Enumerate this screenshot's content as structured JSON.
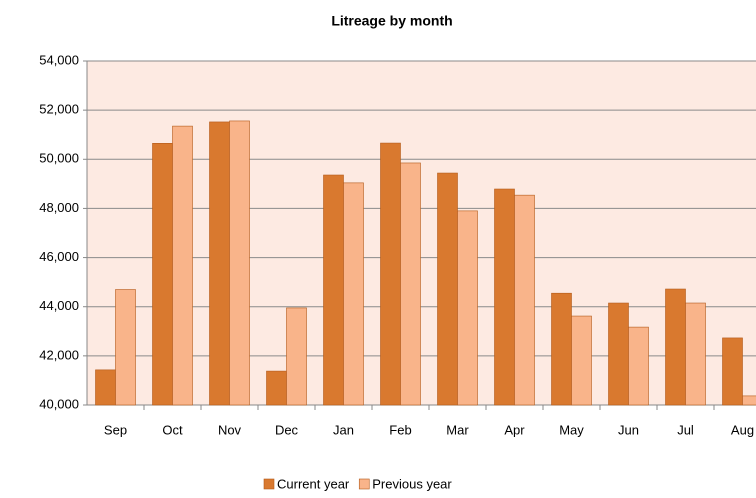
{
  "chart_data": {
    "type": "bar",
    "title": "Litreage by month",
    "categories": [
      "Sep",
      "Oct",
      "Nov",
      "Dec",
      "Jan",
      "Feb",
      "Mar",
      "Apr",
      "May",
      "Jun",
      "Jul",
      "Aug"
    ],
    "series": [
      {
        "name": "Current year",
        "color": "#d9792f",
        "values": [
          41430,
          50650,
          51520,
          41380,
          49360,
          50660,
          49440,
          48790,
          44550,
          44150,
          44720,
          42730
        ]
      },
      {
        "name": "Previous year",
        "color": "#f9b48a",
        "values": [
          44700,
          51350,
          51560,
          43950,
          49040,
          49850,
          47900,
          48540,
          43620,
          43170,
          44150,
          40370
        ]
      }
    ],
    "ylim": [
      40000,
      54000
    ],
    "yticks": [
      {
        "value": 40000,
        "label": "40,000"
      },
      {
        "value": 42000,
        "label": "42,000"
      },
      {
        "value": 44000,
        "label": "44,000"
      },
      {
        "value": 46000,
        "label": "46,000"
      },
      {
        "value": 48000,
        "label": "48,000"
      },
      {
        "value": 50000,
        "label": "50,000"
      },
      {
        "value": 52000,
        "label": "52,000"
      },
      {
        "value": 54000,
        "label": "54,000"
      }
    ],
    "grid": true,
    "legend": "bottom"
  }
}
